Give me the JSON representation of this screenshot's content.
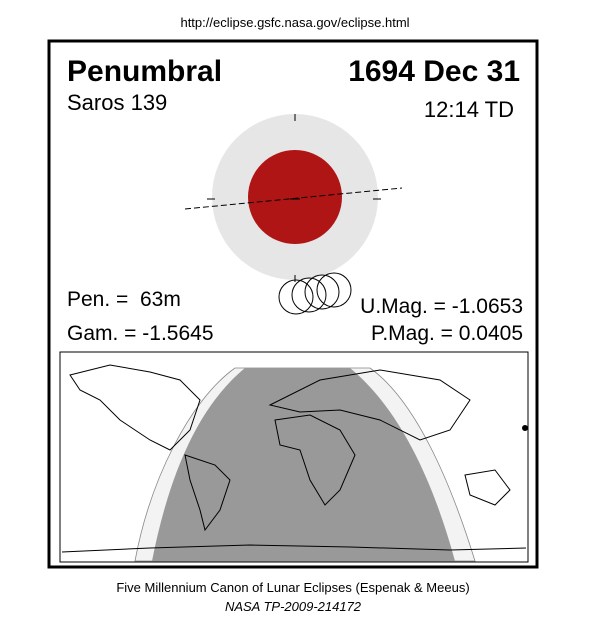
{
  "header": {
    "url": "http://eclipse.gsfc.nasa.gov/eclipse.html"
  },
  "panel": {
    "eclipse_type": "Penumbral",
    "date": "1694 Dec 31",
    "saros": "Saros 139",
    "time": "12:14 TD",
    "pen_duration": "Pen. =  63m",
    "gamma": "Gam. = -1.5645",
    "umbral_magnitude": "U.Mag. = -1.0653",
    "penumbral_magnitude": "P.Mag. = 0.0405"
  },
  "footer": {
    "canon": "Five Millennium Canon of Lunar Eclipses (Espenak & Meeus)",
    "reference": "NASA TP-2009-214172"
  }
}
